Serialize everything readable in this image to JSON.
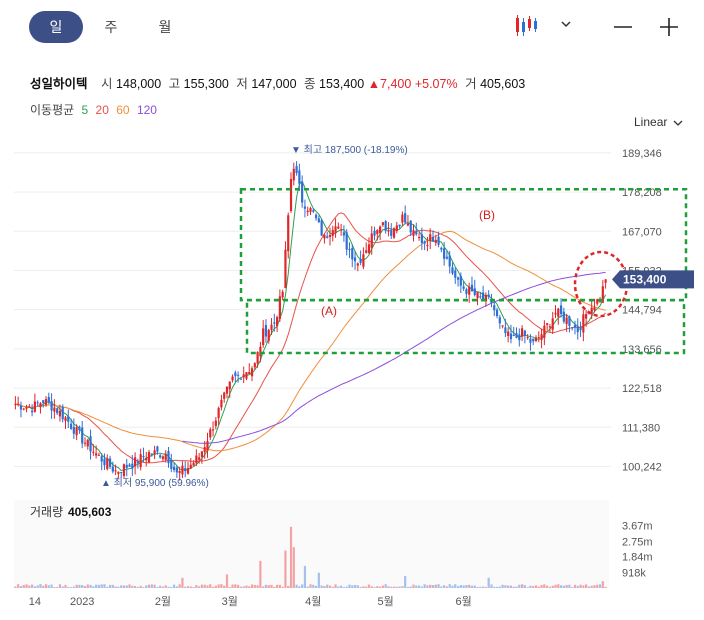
{
  "tabs": [
    {
      "label": "일",
      "active": true
    },
    {
      "label": "주",
      "active": false
    },
    {
      "label": "월",
      "active": false
    }
  ],
  "toolbar": {
    "chart_type_icon": "candlestick-icon",
    "dropdown_icon": "chevron-down-icon",
    "zoom_out_icon": "minus-icon",
    "zoom_in_icon": "plus-icon"
  },
  "info": {
    "name": "성일하이텍",
    "open_label": "시",
    "open": "148,000",
    "high_label": "고",
    "high": "155,300",
    "low_label": "저",
    "low": "147,000",
    "close_label": "종",
    "close": "153,400",
    "change": "▲7,400",
    "change_pct": "+5.07%",
    "volume_label": "거",
    "volume": "405,603"
  },
  "ma": {
    "label": "이동평균",
    "periods": [
      "5",
      "20",
      "60",
      "120"
    ],
    "colors": [
      "#2ea04f",
      "#e8524a",
      "#f08f3a",
      "#8a4fe0"
    ]
  },
  "scale_label": "Linear",
  "colors": {
    "up": "#e0262b",
    "down": "#2d6fd6",
    "box": "#1f9e3a",
    "circle": "#e0262b",
    "price_tag": "#3c4f86"
  },
  "chart_data": {
    "type": "candlestick",
    "price_axis": {
      "ticks": [
        189346,
        178208,
        167070,
        155932,
        144794,
        133656,
        122518,
        111380,
        100242
      ],
      "range": [
        93000,
        193000
      ]
    },
    "volume_axis": {
      "ticks": [
        "3.67m",
        "2.75m",
        "1.84m",
        "918k"
      ]
    },
    "x_ticks": [
      "14",
      "2023",
      "2월",
      "3월",
      "4월",
      "5월",
      "6월"
    ],
    "current_price": "153,400",
    "high_annotation": "▼ 최고 187,500 (-18.19%)",
    "low_annotation": "▲ 최저 95,900 (59.96%)",
    "volume_title": "거래량",
    "volume_value": "405,603",
    "annotations": [
      {
        "label": "(A)",
        "price_top": 147500,
        "price_bottom": 132500
      },
      {
        "label": "(B)",
        "price_top": 179000,
        "price_bottom": 147500
      }
    ],
    "anchors": [
      [
        0,
        118000
      ],
      [
        6,
        117000
      ],
      [
        10,
        119000
      ],
      [
        14,
        117000
      ],
      [
        18,
        114000
      ],
      [
        24,
        108000
      ],
      [
        30,
        103000
      ],
      [
        36,
        99000
      ],
      [
        42,
        101000
      ],
      [
        48,
        104000
      ],
      [
        54,
        104000
      ],
      [
        58,
        98000
      ],
      [
        62,
        100000
      ],
      [
        66,
        103000
      ],
      [
        70,
        110000
      ],
      [
        74,
        118000
      ],
      [
        78,
        125000
      ],
      [
        82,
        127000
      ],
      [
        86,
        129000
      ],
      [
        89,
        138000
      ],
      [
        93,
        141000
      ],
      [
        96,
        150000
      ],
      [
        99,
        182000
      ],
      [
        100,
        186000
      ],
      [
        103,
        176000
      ],
      [
        107,
        172000
      ],
      [
        111,
        165000
      ],
      [
        115,
        170000
      ],
      [
        119,
        163000
      ],
      [
        123,
        158000
      ],
      [
        127,
        164000
      ],
      [
        131,
        170000
      ],
      [
        135,
        167000
      ],
      [
        139,
        171000
      ],
      [
        143,
        166000
      ],
      [
        147,
        164000
      ],
      [
        151,
        166000
      ],
      [
        155,
        159000
      ],
      [
        159,
        152000
      ],
      [
        163,
        150000
      ],
      [
        167,
        148000
      ],
      [
        171,
        147000
      ],
      [
        174,
        140000
      ],
      [
        178,
        136000
      ],
      [
        182,
        138000
      ],
      [
        186,
        135000
      ],
      [
        190,
        139000
      ],
      [
        194,
        144000
      ],
      [
        198,
        142000
      ],
      [
        202,
        139000
      ],
      [
        206,
        145000
      ],
      [
        210,
        148000
      ],
      [
        212,
        153400
      ]
    ],
    "volume_spikes": [
      [
        97,
        2.2
      ],
      [
        99,
        3.6
      ],
      [
        100,
        2.4
      ],
      [
        88,
        1.6
      ],
      [
        104,
        1.3
      ],
      [
        109,
        0.9
      ],
      [
        76,
        0.8
      ],
      [
        60,
        0.6
      ],
      [
        140,
        0.7
      ],
      [
        170,
        0.6
      ],
      [
        211,
        0.4
      ]
    ]
  }
}
